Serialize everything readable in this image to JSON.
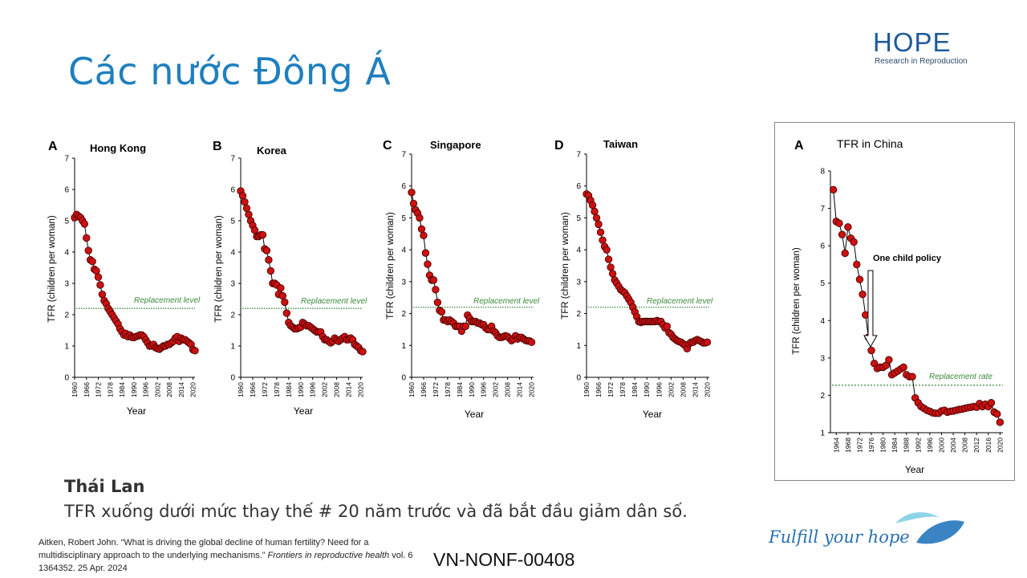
{
  "slide": {
    "title": "Các nước Đông Á",
    "logo": {
      "word": "HOPE",
      "subtitle": "Research in Reproduction"
    },
    "thailand": {
      "heading": "Thái Lan",
      "text": "TFR xuống dưới mức thay thế # 20 năm trước và đã bắt đầu giảm dân số."
    },
    "citation": {
      "text": "Aitken, Robert John. “What is driving the global decline of human fertility? Need for a multidisciplinary approach to the underlying mechanisms.”",
      "journal": "Frontiers in reproductive health",
      "tail": "vol. 6 1364352. 25 Apr. 2024"
    },
    "code": "VN-NONF-00408",
    "slogan": "Fulfill your hope",
    "colors": {
      "title": "#1f7fbf",
      "marker": "#cc1111",
      "replacement": "#3a8a3a",
      "logo": "#1e5a9a"
    }
  },
  "chart_data": [
    {
      "type": "line",
      "panel_letter": "A",
      "title": "Hong Kong",
      "xlabel": "Year",
      "ylabel": "TFR (children per woman)",
      "ylim": [
        0,
        7
      ],
      "yticks": [
        0,
        1,
        2,
        3,
        4,
        5,
        6,
        7
      ],
      "xticks": [
        1960,
        1966,
        1972,
        1978,
        1984,
        1990,
        1996,
        2002,
        2008,
        2014,
        2020
      ],
      "replacement": {
        "value": 2.2,
        "label": "Replacement level"
      },
      "x": [
        1960,
        1961,
        1962,
        1963,
        1964,
        1965,
        1966,
        1967,
        1968,
        1969,
        1970,
        1971,
        1972,
        1973,
        1974,
        1975,
        1976,
        1977,
        1978,
        1979,
        1980,
        1981,
        1982,
        1983,
        1984,
        1985,
        1986,
        1987,
        1988,
        1989,
        1990,
        1991,
        1992,
        1993,
        1994,
        1995,
        1996,
        1997,
        1998,
        1999,
        2000,
        2001,
        2002,
        2003,
        2004,
        2005,
        2006,
        2007,
        2008,
        2009,
        2010,
        2011,
        2012,
        2013,
        2014,
        2015,
        2016,
        2017,
        2018,
        2019,
        2020,
        2021
      ],
      "values": [
        5.1,
        5.2,
        5.15,
        5.1,
        5.0,
        4.9,
        4.45,
        4.05,
        3.75,
        3.7,
        3.45,
        3.4,
        3.2,
        2.95,
        2.65,
        2.45,
        2.35,
        2.2,
        2.1,
        2.0,
        1.9,
        1.8,
        1.7,
        1.55,
        1.45,
        1.35,
        1.4,
        1.3,
        1.35,
        1.28,
        1.27,
        1.3,
        1.32,
        1.35,
        1.35,
        1.3,
        1.2,
        1.1,
        1.0,
        1.0,
        1.05,
        0.95,
        0.92,
        0.9,
        0.95,
        1.0,
        1.0,
        1.05,
        1.05,
        1.1,
        1.15,
        1.25,
        1.3,
        1.15,
        1.25,
        1.2,
        1.2,
        1.15,
        1.1,
        1.05,
        0.88,
        0.85
      ]
    },
    {
      "type": "line",
      "panel_letter": "B",
      "title": "Korea",
      "xlabel": "Year",
      "ylabel": "TFR (children per woman)",
      "ylim": [
        0,
        7
      ],
      "yticks": [
        0,
        1,
        2,
        3,
        4,
        5,
        6,
        7
      ],
      "xticks": [
        1960,
        1966,
        1972,
        1978,
        1984,
        1990,
        1996,
        2002,
        2008,
        2014,
        2020
      ],
      "replacement": {
        "value": 2.2,
        "label": "Replacement level"
      },
      "x": [
        1960,
        1961,
        1962,
        1963,
        1964,
        1965,
        1966,
        1967,
        1968,
        1969,
        1970,
        1971,
        1972,
        1973,
        1974,
        1975,
        1976,
        1977,
        1978,
        1979,
        1980,
        1981,
        1982,
        1983,
        1984,
        1985,
        1986,
        1987,
        1988,
        1989,
        1990,
        1991,
        1992,
        1993,
        1994,
        1995,
        1996,
        1997,
        1998,
        1999,
        2000,
        2001,
        2002,
        2003,
        2004,
        2005,
        2006,
        2007,
        2008,
        2009,
        2010,
        2011,
        2012,
        2013,
        2014,
        2015,
        2016,
        2017,
        2018,
        2019,
        2020,
        2021
      ],
      "values": [
        5.95,
        5.8,
        5.6,
        5.4,
        5.2,
        5.0,
        4.85,
        4.7,
        4.5,
        4.5,
        4.55,
        4.55,
        4.1,
        4.05,
        3.75,
        3.4,
        3.0,
        3.0,
        2.95,
        2.65,
        2.85,
        2.6,
        2.4,
        2.05,
        1.75,
        1.65,
        1.6,
        1.55,
        1.55,
        1.58,
        1.6,
        1.75,
        1.7,
        1.65,
        1.65,
        1.6,
        1.55,
        1.5,
        1.45,
        1.45,
        1.45,
        1.3,
        1.2,
        1.2,
        1.15,
        1.1,
        1.15,
        1.25,
        1.2,
        1.15,
        1.2,
        1.25,
        1.3,
        1.2,
        1.2,
        1.25,
        1.2,
        1.05,
        1.0,
        0.95,
        0.85,
        0.82
      ]
    },
    {
      "type": "line",
      "panel_letter": "C",
      "title": "Singapore",
      "xlabel": "Year",
      "ylabel": "TFR (children per woman)",
      "ylim": [
        0,
        7
      ],
      "yticks": [
        0,
        1,
        2,
        3,
        4,
        5,
        6,
        7
      ],
      "xticks": [
        1960,
        1966,
        1972,
        1978,
        1984,
        1990,
        1996,
        2002,
        2008,
        2014,
        2020
      ],
      "replacement": {
        "value": 2.2,
        "label": "Replacement level"
      },
      "x": [
        1960,
        1961,
        1962,
        1963,
        1964,
        1965,
        1966,
        1967,
        1968,
        1969,
        1970,
        1971,
        1972,
        1973,
        1974,
        1975,
        1976,
        1977,
        1978,
        1979,
        1980,
        1981,
        1982,
        1983,
        1984,
        1985,
        1986,
        1987,
        1988,
        1989,
        1990,
        1991,
        1992,
        1993,
        1994,
        1995,
        1996,
        1997,
        1998,
        1999,
        2000,
        2001,
        2002,
        2003,
        2004,
        2005,
        2006,
        2007,
        2008,
        2009,
        2010,
        2011,
        2012,
        2013,
        2014,
        2015,
        2016,
        2017,
        2018,
        2019,
        2020
      ],
      "values": [
        5.8,
        5.45,
        5.25,
        5.15,
        5.0,
        4.65,
        4.45,
        3.9,
        3.55,
        3.2,
        3.05,
        3.05,
        2.75,
        2.35,
        2.1,
        2.05,
        1.8,
        1.8,
        1.75,
        1.8,
        1.75,
        1.7,
        1.6,
        1.6,
        1.6,
        1.45,
        1.6,
        1.6,
        1.95,
        1.85,
        1.75,
        1.75,
        1.75,
        1.7,
        1.7,
        1.65,
        1.65,
        1.55,
        1.5,
        1.5,
        1.6,
        1.45,
        1.4,
        1.3,
        1.25,
        1.25,
        1.28,
        1.3,
        1.28,
        1.22,
        1.15,
        1.2,
        1.3,
        1.2,
        1.25,
        1.25,
        1.2,
        1.16,
        1.14,
        1.14,
        1.1
      ]
    },
    {
      "type": "line",
      "panel_letter": "D",
      "title": "Taiwan",
      "xlabel": "Year",
      "ylabel": "TFR (children per woman)",
      "ylim": [
        0,
        7
      ],
      "yticks": [
        0,
        1,
        2,
        3,
        4,
        5,
        6,
        7
      ],
      "xticks": [
        1960,
        1966,
        1972,
        1978,
        1984,
        1990,
        1996,
        2002,
        2008,
        2014,
        2020
      ],
      "replacement": {
        "value": 2.2,
        "label": "Replacement level"
      },
      "x": [
        1960,
        1961,
        1962,
        1963,
        1964,
        1965,
        1966,
        1967,
        1968,
        1969,
        1970,
        1971,
        1972,
        1973,
        1974,
        1975,
        1976,
        1977,
        1978,
        1979,
        1980,
        1981,
        1982,
        1983,
        1984,
        1985,
        1986,
        1987,
        1988,
        1989,
        1990,
        1991,
        1992,
        1993,
        1994,
        1995,
        1996,
        1997,
        1998,
        1999,
        2000,
        2001,
        2002,
        2003,
        2004,
        2005,
        2006,
        2007,
        2008,
        2009,
        2010,
        2011,
        2012,
        2013,
        2014,
        2015,
        2016,
        2017,
        2018,
        2019,
        2020
      ],
      "values": [
        5.75,
        5.7,
        5.55,
        5.4,
        5.2,
        5.0,
        4.8,
        4.55,
        4.3,
        4.1,
        4.0,
        3.7,
        3.45,
        3.25,
        3.05,
        2.95,
        2.85,
        2.75,
        2.7,
        2.65,
        2.55,
        2.45,
        2.35,
        2.2,
        2.05,
        1.9,
        1.75,
        1.72,
        1.75,
        1.75,
        1.75,
        1.75,
        1.75,
        1.75,
        1.75,
        1.78,
        1.75,
        1.75,
        1.65,
        1.55,
        1.6,
        1.4,
        1.35,
        1.25,
        1.2,
        1.15,
        1.12,
        1.1,
        1.05,
        1.0,
        0.9,
        1.05,
        1.1,
        1.1,
        1.15,
        1.18,
        1.15,
        1.12,
        1.08,
        1.08,
        1.1
      ]
    },
    {
      "type": "line",
      "panel_letter": "A",
      "title": "TFR in China",
      "xlabel": "Year",
      "ylabel": "TFR (children per woman)",
      "ylim": [
        1,
        8
      ],
      "yticks": [
        1,
        2,
        3,
        4,
        5,
        6,
        7,
        8
      ],
      "xticks": [
        1964,
        1968,
        1972,
        1976,
        1980,
        1984,
        1988,
        1992,
        1996,
        2000,
        2004,
        2008,
        2012,
        2016,
        2020
      ],
      "replacement": {
        "value": 2.27,
        "label": "Replacement rate"
      },
      "annotation": {
        "text": "One child policy",
        "year": 1979
      },
      "x": [
        1963,
        1964,
        1965,
        1966,
        1967,
        1968,
        1969,
        1970,
        1971,
        1972,
        1973,
        1974,
        1975,
        1976,
        1977,
        1978,
        1979,
        1980,
        1981,
        1982,
        1983,
        1984,
        1985,
        1986,
        1987,
        1988,
        1989,
        1990,
        1991,
        1992,
        1993,
        1994,
        1995,
        1996,
        1997,
        1998,
        1999,
        2000,
        2001,
        2002,
        2003,
        2004,
        2005,
        2006,
        2007,
        2008,
        2009,
        2010,
        2011,
        2012,
        2013,
        2014,
        2015,
        2016,
        2017,
        2018,
        2019,
        2020
      ],
      "values": [
        7.5,
        6.65,
        6.6,
        6.3,
        5.8,
        6.5,
        6.2,
        6.1,
        5.5,
        5.1,
        4.7,
        4.15,
        3.55,
        3.2,
        2.85,
        2.72,
        2.75,
        2.75,
        2.8,
        2.95,
        2.55,
        2.6,
        2.65,
        2.7,
        2.75,
        2.55,
        2.5,
        2.5,
        1.93,
        1.8,
        1.7,
        1.65,
        1.6,
        1.57,
        1.53,
        1.52,
        1.52,
        1.58,
        1.6,
        1.55,
        1.57,
        1.58,
        1.6,
        1.62,
        1.63,
        1.65,
        1.67,
        1.68,
        1.7,
        1.68,
        1.78,
        1.7,
        1.76,
        1.7,
        1.8,
        1.55,
        1.5,
        1.28
      ]
    }
  ]
}
